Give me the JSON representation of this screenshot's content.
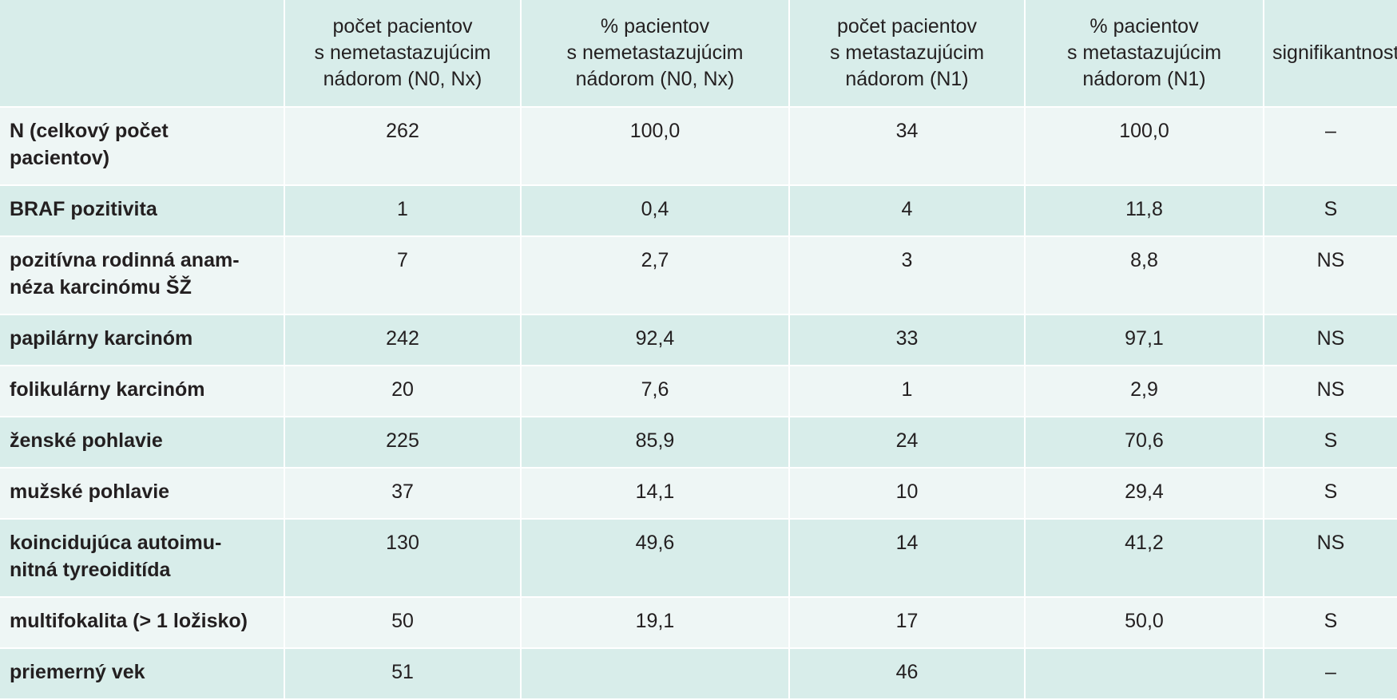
{
  "table": {
    "headers": [
      "",
      "počet pacientov\ns nemetastazujúcim\nnádorom (N0, Nx)",
      "% pacientov\ns nemetastazujúcim\nnádorom (N0, Nx)",
      "počet pacientov\ns metastazujúcim\nnádorom (N1)",
      "% pacientov\ns metastazujúcim\nnádorom (N1)",
      "signifikantnosť"
    ],
    "rows": [
      [
        "N (celkový počet\npacientov)",
        "262",
        "100,0",
        "34",
        "100,0",
        "–"
      ],
      [
        "BRAF pozitivita",
        "1",
        "0,4",
        "4",
        "11,8",
        "S"
      ],
      [
        "pozitívna rodinná anam-\nnéza karcinómu ŠŽ",
        "7",
        "2,7",
        "3",
        "8,8",
        "NS"
      ],
      [
        "papilárny karcinóm",
        "242",
        "92,4",
        "33",
        "97,1",
        "NS"
      ],
      [
        "folikulárny karcinóm",
        "20",
        "7,6",
        "1",
        "2,9",
        "NS"
      ],
      [
        "ženské pohlavie",
        "225",
        "85,9",
        "24",
        "70,6",
        "S"
      ],
      [
        "mužské pohlavie",
        "37",
        "14,1",
        "10",
        "29,4",
        "S"
      ],
      [
        "koincidujúca autoimu-\nnitná tyreoiditída",
        "130",
        "49,6",
        "14",
        "41,2",
        "NS"
      ],
      [
        "multifokalita (> 1 ložisko)",
        "50",
        "19,1",
        "17",
        "50,0",
        "S"
      ],
      [
        "priemerný vek",
        "51",
        "",
        "46",
        "",
        "–"
      ]
    ]
  },
  "colors": {
    "header_bg": "#d8edea",
    "row_light": "#eef6f5",
    "row_dark": "#d8edea",
    "text": "#231f20"
  }
}
